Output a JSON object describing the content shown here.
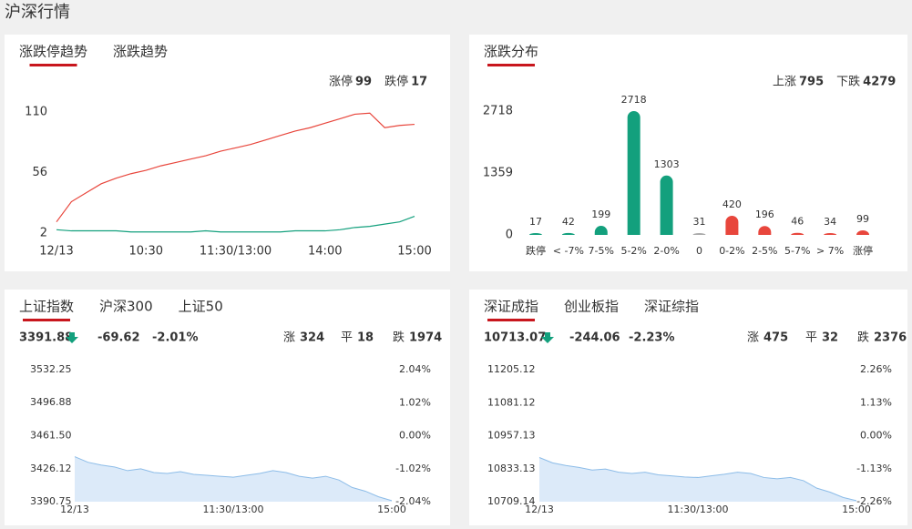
{
  "header": {
    "title": "沪深行情"
  },
  "chart_data": [
    {
      "type": "line",
      "tabs": [
        "涨跌停趋势",
        "涨跌趋势"
      ],
      "x": [
        0,
        10,
        20,
        30,
        40,
        50,
        60,
        70,
        80,
        90,
        100,
        110,
        120,
        130,
        140,
        150,
        160,
        170,
        180,
        190,
        200,
        210,
        220,
        230,
        240
      ],
      "series": [
        {
          "name": "涨停",
          "color": "#e8463c",
          "values": [
            12,
            30,
            38,
            46,
            51,
            55,
            58,
            62,
            65,
            68,
            71,
            75,
            78,
            81,
            85,
            89,
            93,
            96,
            100,
            104,
            108,
            109,
            96,
            98,
            99
          ]
        },
        {
          "name": "跌停",
          "color": "#13a07d",
          "values": [
            5,
            4,
            4,
            4,
            4,
            3,
            3,
            3,
            3,
            3,
            4,
            3,
            3,
            3,
            3,
            3,
            4,
            4,
            4,
            5,
            7,
            8,
            10,
            12,
            17
          ]
        }
      ],
      "xlim": [
        0,
        240
      ],
      "xticks": [
        {
          "value": 0,
          "label": "12/13"
        },
        {
          "value": 60,
          "label": "10:30"
        },
        {
          "value": 120,
          "label": "11:30/13:00"
        },
        {
          "value": 180,
          "label": "14:00"
        },
        {
          "value": 240,
          "label": "15:00"
        }
      ],
      "ylim": [
        2,
        110
      ],
      "yticks": [
        2,
        56,
        110
      ],
      "grid": false
    },
    {
      "type": "bar",
      "tabs": [
        "涨跌分布"
      ],
      "summary": [
        {
          "label": "上涨",
          "value": 795,
          "color": "#e8463c"
        },
        {
          "label": "下跌",
          "value": 4279,
          "color": "#13a07d"
        }
      ],
      "categories": [
        "跌停",
        "< -7%",
        "7-5%",
        "5-2%",
        "2-0%",
        "0",
        "0-2%",
        "2-5%",
        "5-7%",
        "> 7%",
        "涨停"
      ],
      "values": [
        17,
        42,
        199,
        2718,
        1303,
        31,
        420,
        196,
        46,
        34,
        99
      ],
      "colors": [
        "#13a07d",
        "#13a07d",
        "#13a07d",
        "#13a07d",
        "#13a07d",
        "#aaaaaa",
        "#e8463c",
        "#e8463c",
        "#e8463c",
        "#e8463c",
        "#e8463c"
      ],
      "ylim": [
        0,
        2718
      ],
      "yticks": [
        0,
        1359,
        2718
      ],
      "grid": false
    },
    {
      "type": "area",
      "tabs": [
        "上证指数",
        "沪深300",
        "上证50"
      ],
      "quote": {
        "price": 3391.88,
        "change": -69.62,
        "change_pct": "-2.01%",
        "color": "#13a07d",
        "counts": [
          {
            "label": "涨",
            "value": 324,
            "color": "#e8463c"
          },
          {
            "label": "平",
            "value": 18,
            "color": "#999999"
          },
          {
            "label": "跌",
            "value": 1974,
            "color": "#13a07d"
          }
        ]
      },
      "up_color": "#e8463c",
      "down_color": "#13a07d",
      "flat_color": "#999999",
      "color": "#8cbce8",
      "fill": "#dceaf9",
      "x": [
        0,
        10,
        20,
        30,
        40,
        50,
        60,
        70,
        80,
        90,
        100,
        110,
        120,
        130,
        140,
        150,
        160,
        170,
        180,
        190,
        200,
        210,
        220,
        230,
        240
      ],
      "values": [
        3439,
        3433,
        3430,
        3428,
        3424,
        3426,
        3422,
        3421,
        3423,
        3420,
        3419,
        3418,
        3417,
        3419,
        3421,
        3424,
        3422,
        3418,
        3416,
        3418,
        3414,
        3406,
        3402,
        3396,
        3391.88
      ],
      "xlim": [
        0,
        240
      ],
      "xticks": [
        {
          "value": 0,
          "label": "12/13"
        },
        {
          "value": 120,
          "label": "11:30/13:00"
        },
        {
          "value": 240,
          "label": "15:00"
        }
      ],
      "ylim": [
        3390.75,
        3532.25
      ],
      "yticks": [
        3390.75,
        3426.12,
        {
          "value": 3461.5,
          "label": "3461.50"
        },
        3496.88,
        3532.25
      ],
      "y2lim": [
        -2.04,
        2.04
      ],
      "y2ticks": [
        {
          "value": -2.04,
          "label": "-2.04%"
        },
        {
          "value": -1.02,
          "label": "-1.02%"
        },
        {
          "value": 0,
          "label": "0.00%"
        },
        {
          "value": 1.02,
          "label": "1.02%"
        },
        {
          "value": 2.04,
          "label": "2.04%"
        }
      ]
    },
    {
      "type": "area",
      "tabs": [
        "深证成指",
        "创业板指",
        "深证综指"
      ],
      "quote": {
        "price": 10713.07,
        "change": -244.06,
        "change_pct": "-2.23%",
        "color": "#13a07d",
        "counts": [
          {
            "label": "涨",
            "value": 475,
            "color": "#e8463c"
          },
          {
            "label": "平",
            "value": 32,
            "color": "#999999"
          },
          {
            "label": "跌",
            "value": 2376,
            "color": "#13a07d"
          }
        ]
      },
      "up_color": "#e8463c",
      "down_color": "#13a07d",
      "flat_color": "#999999",
      "color": "#8cbce8",
      "fill": "#dceaf9",
      "x": [
        0,
        10,
        20,
        30,
        40,
        50,
        60,
        70,
        80,
        90,
        100,
        110,
        120,
        130,
        140,
        150,
        160,
        170,
        180,
        190,
        200,
        210,
        220,
        230,
        240
      ],
      "values": [
        10875,
        10855,
        10845,
        10838,
        10828,
        10832,
        10820,
        10815,
        10820,
        10810,
        10806,
        10802,
        10800,
        10806,
        10812,
        10820,
        10815,
        10800,
        10795,
        10800,
        10788,
        10760,
        10745,
        10725,
        10713.07
      ],
      "xlim": [
        0,
        240
      ],
      "xticks": [
        {
          "value": 0,
          "label": "12/13"
        },
        {
          "value": 120,
          "label": "11:30/13:00"
        },
        {
          "value": 240,
          "label": "15:00"
        }
      ],
      "ylim": [
        10709.14,
        11205.12
      ],
      "yticks": [
        10709.14,
        10833.13,
        10957.13,
        11081.12,
        11205.12
      ],
      "y2lim": [
        -2.26,
        2.26
      ],
      "y2ticks": [
        {
          "value": -2.26,
          "label": "-2.26%"
        },
        {
          "value": -1.13,
          "label": "-1.13%"
        },
        {
          "value": 0,
          "label": "0.00%"
        },
        {
          "value": 1.13,
          "label": "1.13%"
        },
        {
          "value": 2.26,
          "label": "2.26%"
        }
      ]
    }
  ]
}
